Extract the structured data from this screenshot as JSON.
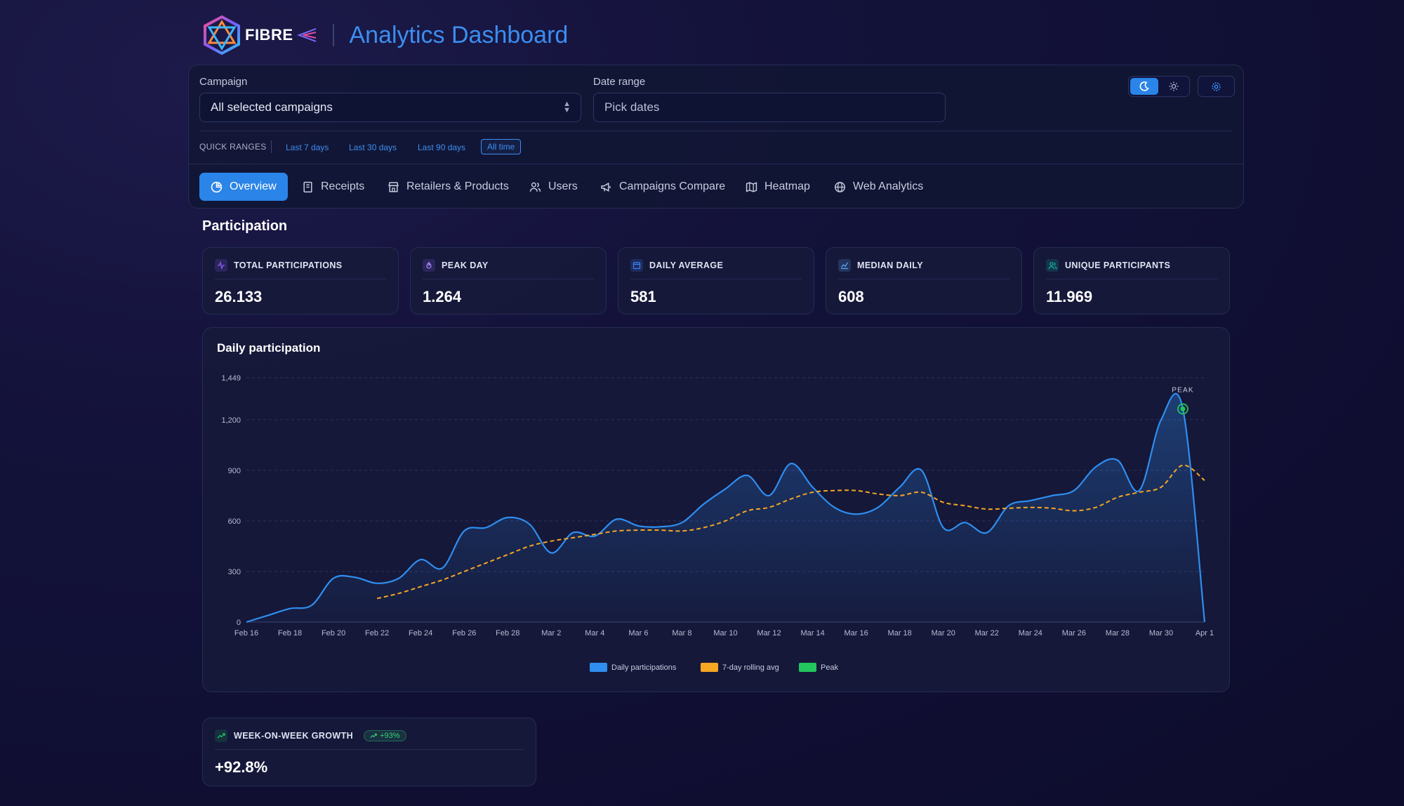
{
  "header": {
    "logo_text": "FIBRE",
    "title": "Analytics Dashboard"
  },
  "filters": {
    "campaign_label": "Campaign",
    "campaign_value": "All selected campaigns",
    "date_label": "Date range",
    "date_placeholder": "Pick dates",
    "quick_ranges_label": "QUICK RANGES",
    "quick_ranges": [
      "Last 7 days",
      "Last 30 days",
      "Last 90 days",
      "All time"
    ],
    "quick_range_active": "All time"
  },
  "tabs": [
    {
      "label": "Overview",
      "icon": "pie-chart-icon",
      "active": true
    },
    {
      "label": "Receipts",
      "icon": "receipt-icon"
    },
    {
      "label": "Retailers & Products",
      "icon": "store-icon"
    },
    {
      "label": "Users",
      "icon": "users-icon"
    },
    {
      "label": "Campaigns Compare",
      "icon": "megaphone-icon"
    },
    {
      "label": "Heatmap",
      "icon": "map-icon"
    },
    {
      "label": "Web Analytics",
      "icon": "globe-icon"
    }
  ],
  "section_title": "Participation",
  "kpis": [
    {
      "label": "TOTAL PARTICIPATIONS",
      "value": "26.133",
      "icon": "activity-icon",
      "color": "#8b5cf6"
    },
    {
      "label": "PEAK DAY",
      "value": "1.264",
      "icon": "flame-icon",
      "color": "#8b5cf6"
    },
    {
      "label": "DAILY AVERAGE",
      "value": "581",
      "icon": "calendar-icon",
      "color": "#3b82f6"
    },
    {
      "label": "MEDIAN DAILY",
      "value": "608",
      "icon": "chart-line-icon",
      "color": "#60a5fa"
    },
    {
      "label": "UNIQUE PARTICIPANTS",
      "value": "11.969",
      "icon": "users-icon",
      "color": "#14b8a6"
    }
  ],
  "growth": {
    "label": "WEEK-ON-WEEK GROWTH",
    "badge": "+93%",
    "value": "+92.8%"
  },
  "colors": {
    "accent": "#2b84e8",
    "daily": "#2f8ef0",
    "rolling": "#f5a623",
    "peak": "#22c55e"
  },
  "chart_data": {
    "type": "line",
    "title": "Daily participation",
    "x_tick_labels": [
      "Feb 16",
      "Feb 18",
      "Feb 20",
      "Feb 22",
      "Feb 24",
      "Feb 26",
      "Feb 28",
      "Mar 2",
      "Mar 4",
      "Mar 6",
      "Mar 8",
      "Mar 10",
      "Mar 12",
      "Mar 14",
      "Mar 16",
      "Mar 18",
      "Mar 20",
      "Mar 22",
      "Mar 24",
      "Mar 26",
      "Mar 28",
      "Mar 30",
      "Apr 1"
    ],
    "y_ticks": [
      0,
      300,
      600,
      900,
      1200,
      1449
    ],
    "y_tick_labels": [
      "0",
      "300",
      "600",
      "900",
      "1,200",
      "1,449"
    ],
    "ylim": [
      0,
      1449
    ],
    "grid": true,
    "legend": "bottom",
    "peak_label": "PEAK",
    "series": [
      {
        "name": "Daily participations",
        "type": "area",
        "values": [
          0,
          40,
          80,
          100,
          260,
          265,
          230,
          260,
          370,
          320,
          540,
          560,
          620,
          580,
          410,
          530,
          510,
          610,
          570,
          565,
          590,
          700,
          790,
          870,
          750,
          940,
          800,
          680,
          640,
          680,
          800,
          900,
          560,
          590,
          530,
          690,
          720,
          750,
          780,
          920,
          960,
          780,
          1200,
          1264,
          0
        ]
      },
      {
        "name": "7-day rolling avg",
        "values": [
          null,
          null,
          null,
          null,
          null,
          null,
          140,
          170,
          210,
          250,
          300,
          350,
          400,
          450,
          480,
          500,
          520,
          540,
          545,
          545,
          540,
          560,
          600,
          660,
          680,
          730,
          770,
          780,
          780,
          760,
          750,
          770,
          710,
          690,
          670,
          675,
          680,
          675,
          660,
          680,
          740,
          770,
          800,
          930,
          840
        ]
      },
      {
        "name": "Peak",
        "points": [
          {
            "x": "Mar 31",
            "y": 1264
          }
        ]
      }
    ]
  }
}
